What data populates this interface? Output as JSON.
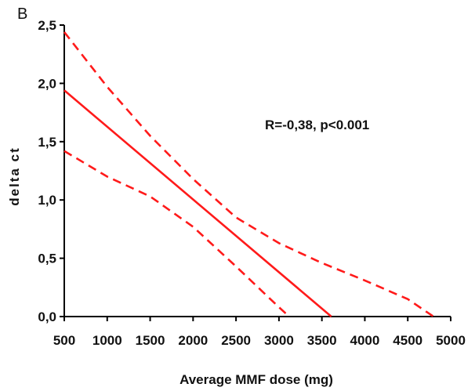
{
  "panel_label": "B",
  "chart_data": {
    "type": "line",
    "xlabel": "Average MMF dose (mg)",
    "ylabel": "delta ct",
    "xlim": [
      500,
      5000
    ],
    "ylim": [
      0,
      2.5
    ],
    "x_ticks": [
      "500",
      "1000",
      "1500",
      "2000",
      "2500",
      "3000",
      "3500",
      "4000",
      "4500",
      "5000"
    ],
    "y_ticks": [
      "0,0",
      "0,5",
      "1,0",
      "1,5",
      "2,0",
      "2,5"
    ],
    "annotation": "R=-0,38, p<0.001",
    "grid": false,
    "series": [
      {
        "role": "regression",
        "style": "solid",
        "color": "#ff1a1a",
        "x": [
          500,
          3610
        ],
        "y": [
          1.94,
          0.0
        ]
      },
      {
        "role": "upper-confidence",
        "style": "dashed",
        "color": "#ff1a1a",
        "x": [
          500,
          1000,
          1500,
          2000,
          2500,
          3000,
          3500,
          4000,
          4500,
          4800
        ],
        "y": [
          2.44,
          1.97,
          1.55,
          1.18,
          0.85,
          0.63,
          0.46,
          0.31,
          0.15,
          0.0
        ]
      },
      {
        "role": "lower-confidence",
        "style": "dashed",
        "color": "#ff1a1a",
        "x": [
          500,
          1000,
          1500,
          2000,
          2500,
          2800,
          3000,
          3120
        ],
        "y": [
          1.42,
          1.2,
          1.03,
          0.77,
          0.43,
          0.22,
          0.08,
          0.0
        ]
      }
    ]
  }
}
